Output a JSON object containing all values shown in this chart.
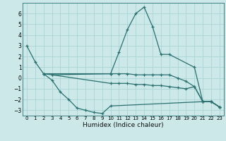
{
  "xlabel": "Humidex (Indice chaleur)",
  "background_color": "#cce8e8",
  "grid_color": "#aad4d4",
  "line_color": "#2a7070",
  "xlim": [
    -0.5,
    23.5
  ],
  "ylim": [
    -3.5,
    7.0
  ],
  "yticks": [
    -3,
    -2,
    -1,
    0,
    1,
    2,
    3,
    4,
    5,
    6
  ],
  "xticks": [
    0,
    1,
    2,
    3,
    4,
    5,
    6,
    7,
    8,
    9,
    10,
    11,
    12,
    13,
    14,
    15,
    16,
    17,
    18,
    19,
    20,
    21,
    22,
    23
  ],
  "lines": [
    {
      "x": [
        0,
        1,
        2,
        10,
        11,
        12,
        13,
        14,
        15,
        16,
        17,
        20,
        21,
        22,
        23
      ],
      "y": [
        3.0,
        1.5,
        0.4,
        0.4,
        2.4,
        4.5,
        6.0,
        6.6,
        4.8,
        2.2,
        2.2,
        1.0,
        -2.2,
        -2.2,
        -2.7
      ]
    },
    {
      "x": [
        2,
        3,
        4,
        5,
        6,
        7,
        8,
        9,
        10,
        21,
        22,
        23
      ],
      "y": [
        0.4,
        -0.2,
        -1.3,
        -2.0,
        -2.8,
        -3.0,
        -3.2,
        -3.3,
        -2.6,
        -2.2,
        -2.2,
        -2.7
      ]
    },
    {
      "x": [
        2,
        3,
        10,
        11,
        12,
        13,
        14,
        15,
        16,
        17,
        18,
        19,
        20,
        21,
        22,
        23
      ],
      "y": [
        0.4,
        0.3,
        0.4,
        0.4,
        0.4,
        0.3,
        0.3,
        0.3,
        0.3,
        0.3,
        0.0,
        -0.3,
        -0.8,
        -2.2,
        -2.2,
        -2.7
      ]
    },
    {
      "x": [
        3,
        10,
        11,
        12,
        13,
        14,
        15,
        16,
        17,
        18,
        19,
        20,
        21,
        22,
        23
      ],
      "y": [
        0.3,
        -0.5,
        -0.5,
        -0.5,
        -0.6,
        -0.6,
        -0.7,
        -0.7,
        -0.8,
        -0.9,
        -1.0,
        -0.8,
        -2.2,
        -2.2,
        -2.7
      ]
    }
  ]
}
